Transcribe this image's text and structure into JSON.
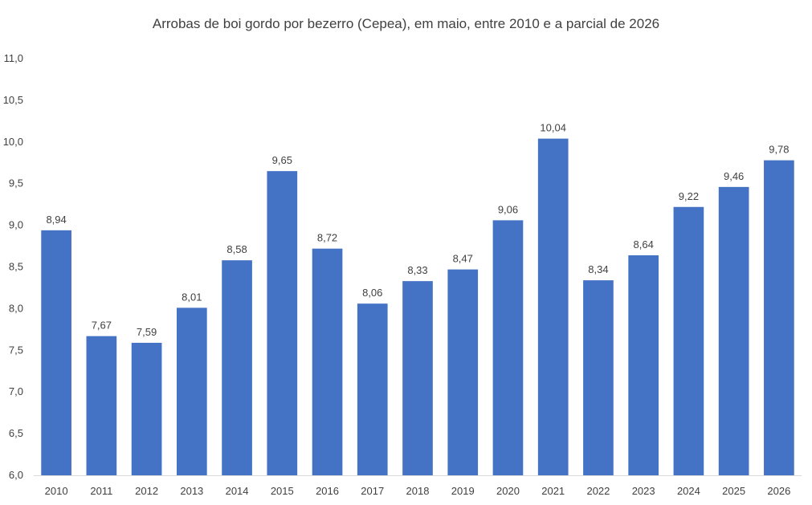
{
  "chart_data": {
    "type": "bar",
    "title": "Arrobas de boi gordo por bezerro (Cepea), em maio, entre 2010 e a parcial de 2026",
    "categories": [
      "2010",
      "2011",
      "2012",
      "2013",
      "2014",
      "2015",
      "2016",
      "2017",
      "2018",
      "2019",
      "2020",
      "2021",
      "2022",
      "2023",
      "2024",
      "2025",
      "2026"
    ],
    "values": [
      8.94,
      7.67,
      7.59,
      8.01,
      8.58,
      9.65,
      8.72,
      8.06,
      8.33,
      8.47,
      9.06,
      10.04,
      8.34,
      8.64,
      9.22,
      9.46,
      9.78
    ],
    "data_labels": [
      "8,94",
      "7,67",
      "7,59",
      "8,01",
      "8,58",
      "9,65",
      "8,72",
      "8,06",
      "8,33",
      "8,47",
      "9,06",
      "10,04",
      "8,34",
      "8,64",
      "9,22",
      "9,46",
      "9,78"
    ],
    "ylim": [
      6.0,
      11.0
    ],
    "yticks": [
      6.0,
      6.5,
      7.0,
      7.5,
      8.0,
      8.5,
      9.0,
      9.5,
      10.0,
      10.5,
      11.0
    ],
    "ytick_labels": [
      "6,0",
      "6,5",
      "7,0",
      "7,5",
      "8,0",
      "8,5",
      "9,0",
      "9,5",
      "10,0",
      "10,5",
      "11,0"
    ],
    "bar_color": "#4472C4",
    "grid": false,
    "legend": "none"
  }
}
